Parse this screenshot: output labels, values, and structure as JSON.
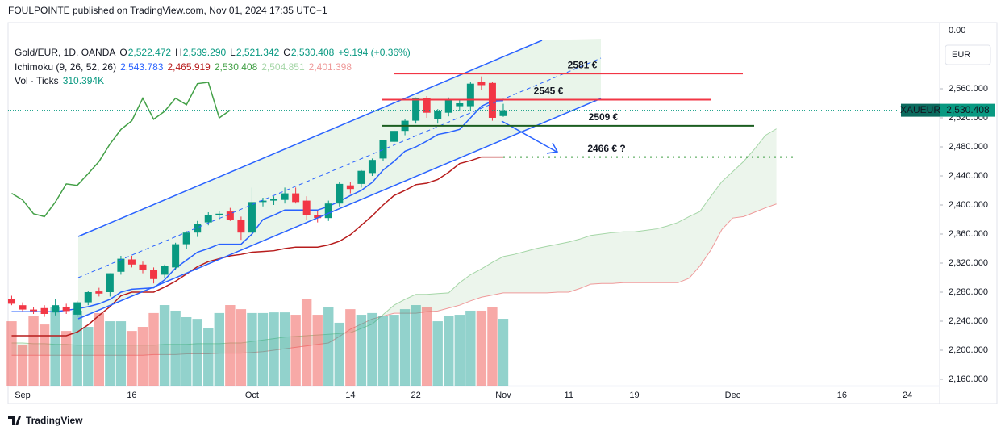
{
  "publisher": "FOULPOINTE published on TradingView.com, Nov 01, 2024 17:35 UTC+1",
  "legend": {
    "instrument": "Gold/EUR, 1D, OANDA",
    "ohlc": [
      {
        "key": "O",
        "value": "2,522.472"
      },
      {
        "key": "H",
        "value": "2,539.290"
      },
      {
        "key": "L",
        "value": "2,521.342"
      },
      {
        "key": "C",
        "value": "2,530.408"
      }
    ],
    "change": "+9.194 (+0.36%)"
  },
  "chart_data": {
    "type": "candlestick",
    "categories": [
      null,
      "Sep",
      null,
      null,
      null,
      null,
      null,
      null,
      null,
      null,
      null,
      "16",
      null,
      null,
      null,
      null,
      null,
      null,
      null,
      null,
      null,
      null,
      "Oct",
      null,
      null,
      null,
      null,
      null,
      null,
      null,
      null,
      "14",
      null,
      null,
      null,
      null,
      null,
      "22",
      null,
      null,
      null,
      null,
      null,
      null,
      null,
      "Nov",
      null,
      null,
      null,
      null,
      null,
      "11",
      null,
      null,
      null,
      null,
      null,
      "19",
      null,
      null,
      null,
      null,
      null,
      null,
      null,
      null,
      "Dec",
      null,
      null,
      null,
      null,
      null,
      null,
      null,
      null,
      null,
      "16",
      null,
      null,
      null,
      null,
      null,
      "24"
    ],
    "open": [
      2271,
      2262,
      2256,
      2258,
      2252,
      2260,
      2249,
      2266,
      2281,
      2280,
      2308,
      2325,
      2318,
      2311,
      2304,
      2314,
      2346,
      2362,
      2376,
      2386,
      2391,
      2380,
      2362,
      2404,
      2406,
      2407,
      2416,
      2406,
      2386,
      2382,
      2402,
      2427,
      2429,
      2444,
      2464,
      2487,
      2502,
      2516,
      2547,
      2518,
      2527,
      2536,
      2536,
      2569,
      2568,
      2522.472,
      null,
      null,
      null,
      null,
      null,
      null,
      null,
      null,
      null,
      null,
      null,
      null,
      null,
      null,
      null,
      null,
      null,
      null,
      null,
      null,
      null,
      null,
      null,
      null,
      null,
      null,
      null,
      null,
      null,
      null,
      null,
      null,
      null,
      null,
      null,
      null,
      null
    ],
    "high": [
      2275,
      2266,
      2260,
      2262,
      2270,
      2264,
      2268,
      2282,
      2286,
      2306,
      2330,
      2330,
      2322,
      2314,
      2318,
      2348,
      2364,
      2378,
      2390,
      2392,
      2396,
      2384,
      2424,
      2410,
      2412,
      2424,
      2424,
      2412,
      2392,
      2406,
      2432,
      2432,
      2448,
      2464,
      2490,
      2504,
      2518,
      2548,
      2550,
      2532,
      2548,
      2546,
      2570,
      2577,
      2570,
      2539.29,
      null,
      null,
      null,
      null,
      null,
      null,
      null,
      null,
      null,
      null,
      null,
      null,
      null,
      null,
      null,
      null,
      null,
      null,
      null,
      null,
      null,
      null,
      null,
      null,
      null,
      null,
      null,
      null,
      null,
      null,
      null,
      null,
      null,
      null,
      null,
      null,
      null
    ],
    "low": [
      2262,
      2254,
      2250,
      2246,
      2248,
      2250,
      2246,
      2262,
      2274,
      2274,
      2304,
      2314,
      2306,
      2292,
      2300,
      2310,
      2340,
      2356,
      2372,
      2380,
      2378,
      2352,
      2356,
      2398,
      2400,
      2402,
      2402,
      2380,
      2376,
      2378,
      2398,
      2416,
      2424,
      2440,
      2460,
      2482,
      2496,
      2512,
      2520,
      2512,
      2522,
      2530,
      2530,
      2558,
      2516,
      2521.342,
      null,
      null,
      null,
      null,
      null,
      null,
      null,
      null,
      null,
      null,
      null,
      null,
      null,
      null,
      null,
      null,
      null,
      null,
      null,
      null,
      null,
      null,
      null,
      null,
      null,
      null,
      null,
      null,
      null,
      null,
      null,
      null,
      null,
      null,
      null,
      null,
      null
    ],
    "close": [
      2264,
      2256,
      2254,
      2250,
      2262,
      2254,
      2266,
      2280,
      2278,
      2306,
      2326,
      2318,
      2310,
      2298,
      2316,
      2346,
      2362,
      2374,
      2386,
      2388,
      2380,
      2362,
      2404,
      2406,
      2408,
      2416,
      2404,
      2386,
      2382,
      2402,
      2429,
      2422,
      2447,
      2462,
      2489,
      2502,
      2516,
      2547,
      2527,
      2529,
      2544,
      2540,
      2567,
      2565,
      2520,
      2530.408,
      null,
      null,
      null,
      null,
      null,
      null,
      null,
      null,
      null,
      null,
      null,
      null,
      null,
      null,
      null,
      null,
      null,
      null,
      null,
      null,
      null,
      null,
      null,
      null,
      null,
      null,
      null,
      null,
      null,
      null,
      null,
      null,
      null,
      null,
      null,
      null,
      null
    ],
    "up_color": "#089981",
    "down_color": "#f23645",
    "ylim": [
      2151.1,
      2651.1
    ],
    "yticks": [
      {
        "value": 2160,
        "label": "2,160.000"
      },
      {
        "value": 2200,
        "label": "2,200.000"
      },
      {
        "value": 2240,
        "label": "2,240.000"
      },
      {
        "value": 2280,
        "label": "2,280.000"
      },
      {
        "value": 2320,
        "label": "2,320.000"
      },
      {
        "value": 2360,
        "label": "2,360.000"
      },
      {
        "value": 2400,
        "label": "2,400.000"
      },
      {
        "value": 2440,
        "label": "2,440.000"
      },
      {
        "value": 2480,
        "label": "2,480.000"
      },
      {
        "value": 2520,
        "label": "2,520.000"
      },
      {
        "value": 2560,
        "label": "2,560.000"
      }
    ],
    "top_axis_label": "0.00",
    "grid": false,
    "currency": "EUR",
    "symbol": "XAUEUR",
    "last_price_label": "2,530.408",
    "ichimoku": {
      "label": "Ichimoku (9, 26, 52, 26)",
      "cloud_color": "#43a047",
      "lines": [
        {
          "color": "#2962ff",
          "legend_value": "2,543.783",
          "values": [
            2253,
            2253,
            2253,
            2253,
            2253,
            2255,
            2257,
            2260,
            2264,
            2270,
            2280,
            2284,
            2285,
            2286,
            2297,
            2313,
            2324,
            2335,
            2340,
            2346,
            2346,
            2346,
            2360,
            2380,
            2386,
            2393,
            2393,
            2393,
            2393,
            2398,
            2405,
            2413,
            2420,
            2431,
            2448,
            2460,
            2474,
            2480,
            2488,
            2497,
            2500,
            2504,
            2520,
            2536,
            2543,
            2543.783,
            null,
            null,
            null,
            null,
            null,
            null,
            null,
            null,
            null,
            null,
            null,
            null,
            null,
            null,
            null,
            null,
            null,
            null,
            null,
            null,
            null,
            null,
            null,
            null,
            null,
            null,
            null,
            null,
            null,
            null,
            null,
            null,
            null,
            null,
            null,
            null,
            null
          ]
        },
        {
          "color": "#b71c1c",
          "legend_value": "2,465.919",
          "values": [
            2220,
            2220,
            2220,
            2220,
            2220,
            2220,
            2225,
            2235,
            2248,
            2260,
            2275,
            2280,
            2280,
            2280,
            2287,
            2295,
            2305,
            2315,
            2322,
            2326,
            2330,
            2332,
            2335,
            2336,
            2337,
            2340,
            2342,
            2342,
            2342,
            2345,
            2350,
            2359,
            2372,
            2385,
            2400,
            2413,
            2420,
            2428,
            2430,
            2435,
            2445,
            2457,
            2461,
            2466,
            2466,
            2465.919,
            null,
            null,
            null,
            null,
            null,
            null,
            null,
            null,
            null,
            null,
            null,
            null,
            null,
            null,
            null,
            null,
            null,
            null,
            null,
            null,
            null,
            null,
            null,
            null,
            null,
            null,
            null,
            null,
            null,
            null,
            null,
            null,
            null,
            null,
            null,
            null,
            null
          ]
        },
        {
          "color": "#43a047",
          "legend_value": "2,530.408",
          "values": [
            2416,
            2407,
            2388,
            2384,
            2404,
            2429,
            2427,
            2443,
            2460,
            2484,
            2504,
            2516,
            2547,
            2518,
            2529,
            2547,
            2538,
            2567,
            2569,
            2520,
            2530.408,
            null,
            null,
            null,
            null,
            null,
            null,
            null,
            null,
            null,
            null,
            null,
            null,
            null,
            null,
            null,
            null,
            null,
            null,
            null,
            null,
            null,
            null,
            null,
            null,
            null,
            null,
            null,
            null,
            null,
            null,
            null,
            null,
            null,
            null,
            null,
            null,
            null,
            null,
            null,
            null,
            null,
            null,
            null,
            null,
            null,
            null,
            null,
            null,
            null,
            null,
            null,
            null,
            null,
            null,
            null,
            null,
            null,
            null,
            null,
            null,
            null,
            null
          ]
        },
        {
          "color": "#a5d6a7",
          "legend_value": "2,504.851",
          "values": [
            2210,
            2210,
            2209,
            2209,
            2208,
            2208,
            2207,
            2207,
            2207,
            2207,
            2207,
            2207,
            2207,
            2207,
            2208,
            2208,
            2208,
            2209,
            2209,
            2209,
            2210,
            2210,
            2212,
            2214,
            2216,
            2218,
            2219,
            2220,
            2221,
            2222,
            2223,
            2224,
            2230,
            2236,
            2249,
            2262,
            2270,
            2277,
            2277,
            2278,
            2279,
            2293,
            2304,
            2312,
            2321,
            2329,
            2332,
            2336,
            2340,
            2343,
            2346,
            2349,
            2353,
            2358,
            2360,
            2362,
            2363,
            2363,
            2365,
            2367,
            2371,
            2376,
            2384,
            2391,
            2412,
            2432,
            2446,
            2460,
            2477,
            2496,
            2504.851,
            null,
            null,
            null,
            null,
            null,
            null,
            null,
            null,
            null,
            null,
            null,
            null
          ]
        },
        {
          "color": "#ef9a9a",
          "legend_value": "2,401.398",
          "values": [
            2193,
            2193,
            2193,
            2193,
            2193,
            2193,
            2193,
            2193,
            2193,
            2193,
            2193,
            2193,
            2193,
            2194,
            2194,
            2194,
            2195,
            2195,
            2195,
            2196,
            2196,
            2196,
            2197,
            2198,
            2200,
            2202,
            2204,
            2206,
            2208,
            2210,
            2219,
            2229,
            2236,
            2243,
            2247,
            2251,
            2251,
            2251,
            2253,
            2254,
            2258,
            2262,
            2268,
            2273,
            2276,
            2279,
            2279,
            2279,
            2279,
            2279,
            2280,
            2280,
            2285,
            2291,
            2292,
            2292,
            2293,
            2293,
            2293,
            2293,
            2293,
            2293,
            2299,
            2316,
            2338,
            2366,
            2382,
            2384,
            2390,
            2396,
            2401.398,
            null,
            null,
            null,
            null,
            null,
            null,
            null,
            null,
            null,
            null,
            null,
            null
          ]
        }
      ]
    },
    "volume": {
      "label": "Vol · Ticks",
      "legend_value": "310.394K",
      "up_color": "rgba(38,166,154,0.5)",
      "down_color": "rgba(239,83,80,0.5)",
      "values": [
        299,
        187,
        322,
        284,
        366,
        254,
        348,
        273,
        337,
        299,
        299,
        254,
        273,
        337,
        374,
        348,
        318,
        310,
        266,
        337,
        374,
        355,
        337,
        337,
        340,
        340,
        329,
        404,
        329,
        366,
        292,
        355,
        329,
        337,
        322,
        329,
        355,
        374,
        366,
        299,
        322,
        329,
        348,
        348,
        366,
        310.394,
        null,
        null,
        null,
        null,
        null,
        null,
        null,
        null,
        null,
        null,
        null,
        null,
        null,
        null,
        null,
        null,
        null,
        null,
        null,
        null,
        null,
        null,
        null,
        null,
        null,
        null,
        null,
        null,
        null,
        null,
        null,
        null,
        null,
        null,
        null,
        null,
        null
      ]
    },
    "annotations": [
      {
        "label": "2581 €",
        "value": 2581,
        "color": "#f23645",
        "text_color": "#e53935",
        "line_style": "solid"
      },
      {
        "label": "2545 €",
        "value": 2545,
        "color": "#f23645",
        "text_color": "#e06666",
        "line_style": "solid"
      },
      {
        "label": "2509 €",
        "value": 2509,
        "color": "#1b5e20",
        "text_color": "#2e7d32",
        "line_style": "solid"
      },
      {
        "label": "2466 € ?",
        "value": 2466,
        "color": "#43a047",
        "text_color": "#2962ff",
        "line_style": "dotted"
      }
    ]
  },
  "footer": {
    "logo": "TradingView"
  }
}
